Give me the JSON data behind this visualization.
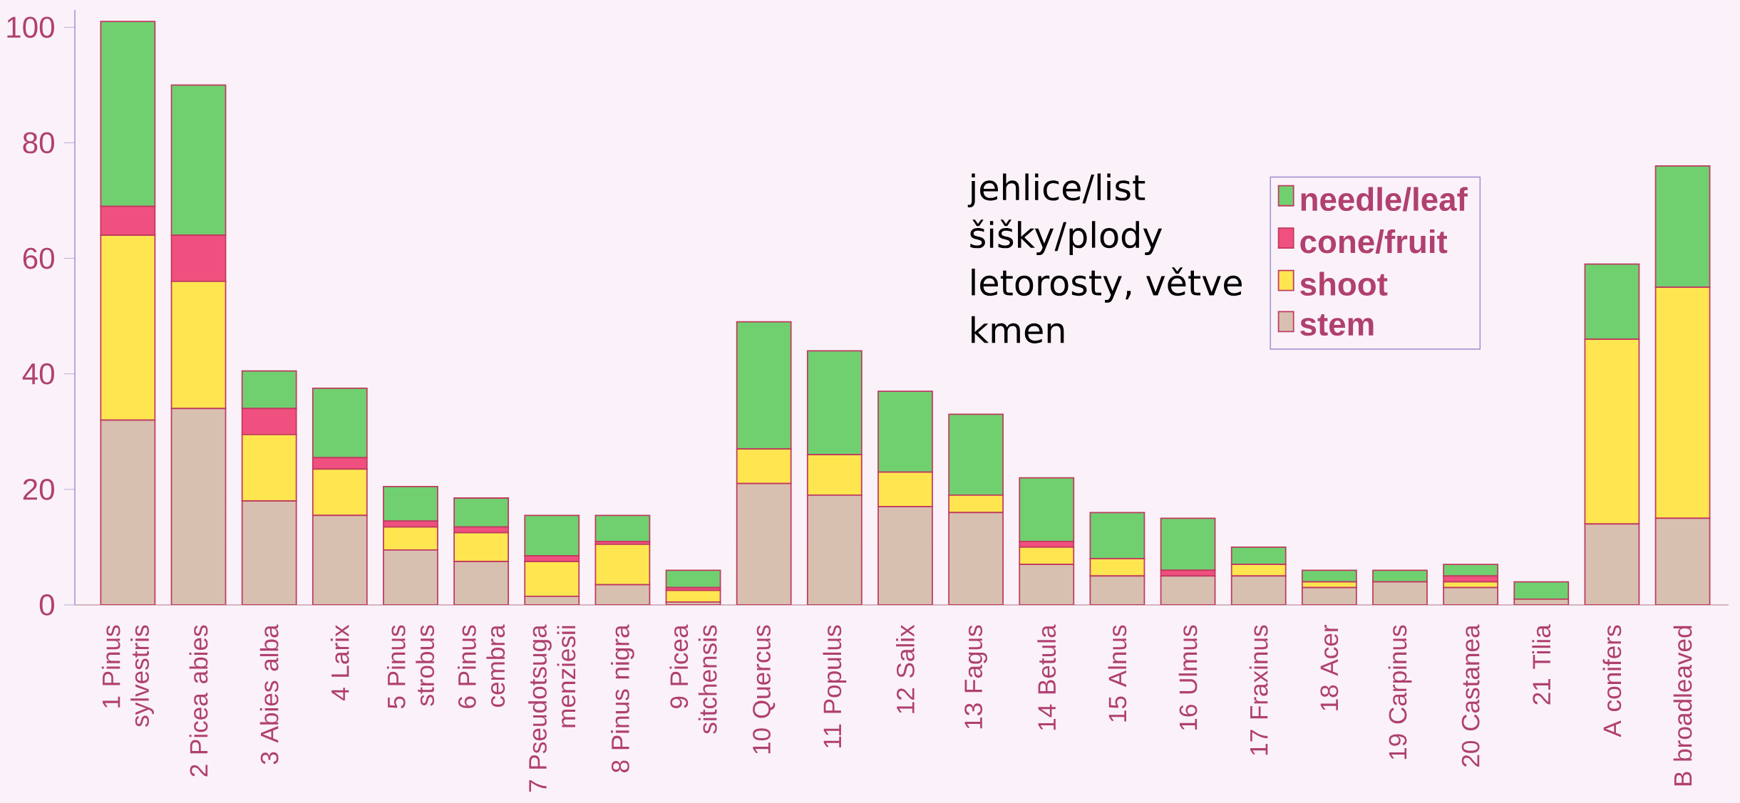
{
  "chart_data": {
    "type": "bar",
    "stacked": true,
    "categories": [
      "1 Pinus sylvestris",
      "2 Picea abies",
      "3 Abies alba",
      "4 Larix",
      "5 Pinus strobus",
      "6 Pinus cembra",
      "7 Pseudotsuga menziesii",
      "8 Pinus nigra",
      "9 Picea sitchensis",
      "10 Quercus",
      "11 Populus",
      "12 Salix",
      "13 Fagus",
      "14 Betula",
      "15 Alnus",
      "16 Ulmus",
      "17 Fraxinus",
      "18 Acer",
      "19 Carpinus",
      "20 Castanea",
      "21 Tilia",
      "A conifers",
      "B broadleaved"
    ],
    "series": [
      {
        "name": "stem",
        "color": "#d8c0b0",
        "values": [
          32,
          34,
          18,
          15.5,
          9.5,
          7.5,
          1.5,
          3.5,
          0.5,
          21,
          19,
          17,
          16,
          7,
          5,
          5,
          5,
          3,
          4,
          3,
          1,
          14,
          15
        ]
      },
      {
        "name": "shoot",
        "color": "#ffe650",
        "values": [
          32,
          22,
          11.5,
          8,
          4,
          5,
          6,
          7,
          2,
          6,
          7,
          6,
          3,
          3,
          3,
          0,
          2,
          1,
          0,
          1,
          0,
          32,
          40
        ]
      },
      {
        "name": "cone/fruit",
        "color": "#f0507f",
        "values": [
          5,
          8,
          4.5,
          2,
          1,
          1,
          1,
          0.5,
          0.5,
          0,
          0,
          0,
          0,
          1,
          0,
          1,
          0,
          0,
          0,
          1,
          0,
          0,
          0
        ]
      },
      {
        "name": "needle/leaf",
        "color": "#70d070",
        "values": [
          32,
          26,
          6.5,
          12,
          6,
          5,
          7,
          4.5,
          3,
          22,
          18,
          14,
          14,
          11,
          8,
          9,
          3,
          2,
          2,
          2,
          3,
          13,
          21
        ]
      }
    ],
    "ylim": [
      0,
      103
    ],
    "yticks": [
      0,
      20,
      40,
      60,
      80,
      100
    ],
    "legend": "top right",
    "annotations": [
      "jehlice/list",
      "šišky/plody",
      "letorosty, větve",
      "kmen"
    ]
  }
}
